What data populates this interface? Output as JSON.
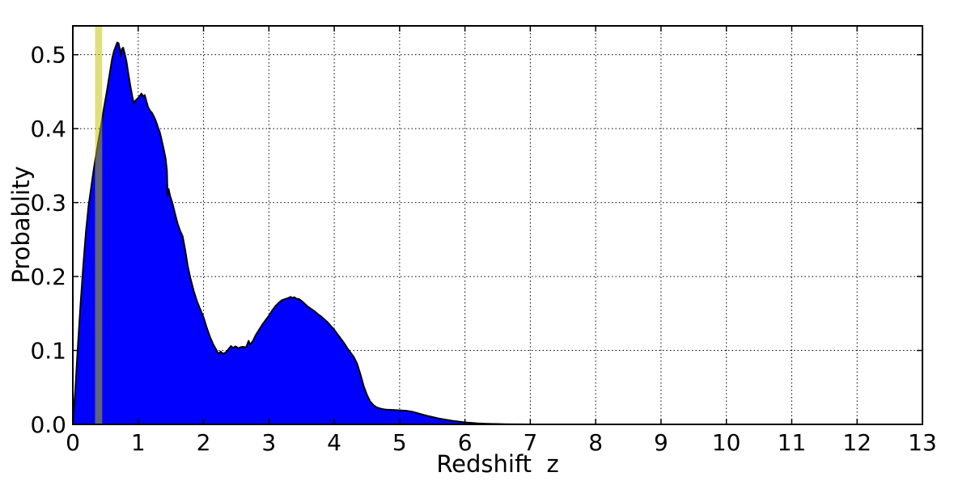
{
  "chart_data": {
    "type": "area",
    "title": "",
    "xlabel": "Redshift  z",
    "ylabel": "Probablity",
    "xlim": [
      0,
      13
    ],
    "ylim": [
      0,
      0.539
    ],
    "x_ticks": [
      0,
      1,
      2,
      3,
      4,
      5,
      6,
      7,
      8,
      9,
      10,
      11,
      12,
      13
    ],
    "x_tick_labels": [
      "0",
      "1",
      "2",
      "3",
      "4",
      "5",
      "6",
      "7",
      "8",
      "9",
      "10",
      "11",
      "12",
      "13"
    ],
    "y_ticks": [
      0.0,
      0.1,
      0.2,
      0.3,
      0.4,
      0.5
    ],
    "y_tick_labels": [
      "0.0",
      "0.1",
      "0.2",
      "0.3",
      "0.4",
      "0.5"
    ],
    "grid": "dotted",
    "legend": "none",
    "colors": {
      "fill": "#0000ff",
      "edge": "#000000",
      "band": "#bfbf00",
      "band_alpha": 0.5,
      "grid": "#000000",
      "background": "#ffffff"
    },
    "highlight_band": {
      "label": "z-highlight-band",
      "x_min": 0.34,
      "x_max": 0.45
    },
    "series": [
      {
        "name": "redshift-probability-density",
        "points": [
          [
            0.0,
            0.0
          ],
          [
            0.04,
            0.05
          ],
          [
            0.08,
            0.11
          ],
          [
            0.12,
            0.165
          ],
          [
            0.16,
            0.215
          ],
          [
            0.2,
            0.26
          ],
          [
            0.24,
            0.295
          ],
          [
            0.28,
            0.32
          ],
          [
            0.32,
            0.345
          ],
          [
            0.36,
            0.367
          ],
          [
            0.4,
            0.388
          ],
          [
            0.44,
            0.408
          ],
          [
            0.48,
            0.43
          ],
          [
            0.52,
            0.45
          ],
          [
            0.56,
            0.472
          ],
          [
            0.6,
            0.494
          ],
          [
            0.63,
            0.505
          ],
          [
            0.66,
            0.512
          ],
          [
            0.68,
            0.5165
          ],
          [
            0.7,
            0.5155
          ],
          [
            0.72,
            0.507
          ],
          [
            0.735,
            0.4975
          ],
          [
            0.75,
            0.508
          ],
          [
            0.77,
            0.5095
          ],
          [
            0.79,
            0.503
          ],
          [
            0.82,
            0.4915
          ],
          [
            0.85,
            0.474
          ],
          [
            0.88,
            0.458
          ],
          [
            0.91,
            0.4435
          ],
          [
            0.935,
            0.4335
          ],
          [
            0.955,
            0.4375
          ],
          [
            0.975,
            0.4395
          ],
          [
            1.0,
            0.4415
          ],
          [
            1.025,
            0.4445
          ],
          [
            1.05,
            0.4475
          ],
          [
            1.075,
            0.4435
          ],
          [
            1.1,
            0.4455
          ],
          [
            1.125,
            0.4375
          ],
          [
            1.15,
            0.4295
          ],
          [
            1.18,
            0.4245
          ],
          [
            1.21,
            0.4215
          ],
          [
            1.24,
            0.4165
          ],
          [
            1.27,
            0.4105
          ],
          [
            1.3,
            0.4025
          ],
          [
            1.33,
            0.3955
          ],
          [
            1.36,
            0.3845
          ],
          [
            1.39,
            0.3725
          ],
          [
            1.42,
            0.3595
          ],
          [
            1.44,
            0.3435
          ],
          [
            1.45,
            0.3095
          ],
          [
            1.465,
            0.3185
          ],
          [
            1.49,
            0.3085
          ],
          [
            1.52,
            0.3005
          ],
          [
            1.56,
            0.2865
          ],
          [
            1.6,
            0.2725
          ],
          [
            1.64,
            0.2625
          ],
          [
            1.68,
            0.2545
          ],
          [
            1.72,
            0.2355
          ],
          [
            1.76,
            0.2135
          ],
          [
            1.8,
            0.1975
          ],
          [
            1.85,
            0.1805
          ],
          [
            1.9,
            0.1665
          ],
          [
            1.95,
            0.1555
          ],
          [
            2.0,
            0.145
          ],
          [
            2.05,
            0.1305
          ],
          [
            2.1,
            0.118
          ],
          [
            2.15,
            0.108
          ],
          [
            2.2,
            0.1
          ],
          [
            2.23,
            0.095
          ],
          [
            2.26,
            0.0985
          ],
          [
            2.3,
            0.0955
          ],
          [
            2.34,
            0.0975
          ],
          [
            2.38,
            0.1015
          ],
          [
            2.42,
            0.106
          ],
          [
            2.45,
            0.1035
          ],
          [
            2.49,
            0.1055
          ],
          [
            2.53,
            0.103
          ],
          [
            2.57,
            0.1045
          ],
          [
            2.61,
            0.105
          ],
          [
            2.65,
            0.104
          ],
          [
            2.69,
            0.113
          ],
          [
            2.71,
            0.108
          ],
          [
            2.75,
            0.112
          ],
          [
            2.8,
            0.121
          ],
          [
            2.85,
            0.128
          ],
          [
            2.9,
            0.135
          ],
          [
            2.95,
            0.141
          ],
          [
            3.0,
            0.147
          ],
          [
            3.05,
            0.154
          ],
          [
            3.1,
            0.16
          ],
          [
            3.15,
            0.1645
          ],
          [
            3.2,
            0.168
          ],
          [
            3.25,
            0.1695
          ],
          [
            3.3,
            0.171
          ],
          [
            3.33,
            0.1725
          ],
          [
            3.36,
            0.171
          ],
          [
            3.39,
            0.172
          ],
          [
            3.42,
            0.17
          ],
          [
            3.46,
            0.1695
          ],
          [
            3.5,
            0.167
          ],
          [
            3.55,
            0.163
          ],
          [
            3.6,
            0.159
          ],
          [
            3.65,
            0.156
          ],
          [
            3.7,
            0.153
          ],
          [
            3.75,
            0.149
          ],
          [
            3.8,
            0.146
          ],
          [
            3.85,
            0.142
          ],
          [
            3.9,
            0.138
          ],
          [
            3.95,
            0.133
          ],
          [
            4.0,
            0.128
          ],
          [
            4.05,
            0.122
          ],
          [
            4.1,
            0.116
          ],
          [
            4.15,
            0.11
          ],
          [
            4.2,
            0.103
          ],
          [
            4.25,
            0.097
          ],
          [
            4.3,
            0.091
          ],
          [
            4.35,
            0.082
          ],
          [
            4.4,
            0.068
          ],
          [
            4.45,
            0.052
          ],
          [
            4.5,
            0.04
          ],
          [
            4.55,
            0.031
          ],
          [
            4.6,
            0.026
          ],
          [
            4.65,
            0.023
          ],
          [
            4.7,
            0.0215
          ],
          [
            4.75,
            0.0205
          ],
          [
            4.8,
            0.02
          ],
          [
            4.9,
            0.0195
          ],
          [
            5.0,
            0.019
          ],
          [
            5.1,
            0.0185
          ],
          [
            5.2,
            0.017
          ],
          [
            5.3,
            0.0145
          ],
          [
            5.4,
            0.012
          ],
          [
            5.5,
            0.01
          ],
          [
            5.6,
            0.008
          ],
          [
            5.7,
            0.0065
          ],
          [
            5.8,
            0.005
          ],
          [
            5.9,
            0.0038
          ],
          [
            6.0,
            0.0028
          ],
          [
            6.1,
            0.002
          ],
          [
            6.2,
            0.0014
          ],
          [
            6.3,
            0.001
          ],
          [
            6.4,
            0.0007
          ],
          [
            6.5,
            0.0005
          ],
          [
            6.6,
            0.0003
          ],
          [
            6.8,
            0.0001
          ],
          [
            7.0,
            0.0
          ]
        ]
      }
    ]
  }
}
